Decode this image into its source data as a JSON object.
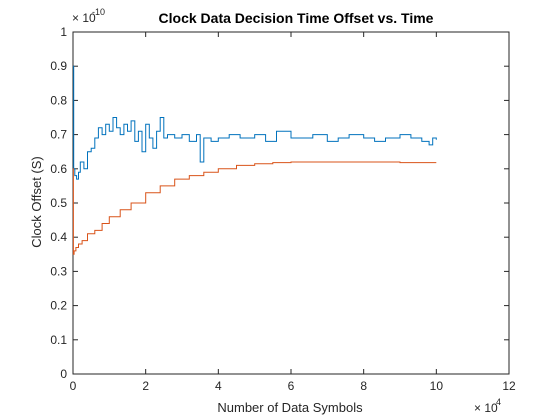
{
  "chart_data": {
    "type": "line",
    "title": "Clock Data Decision Time Offset vs. Time",
    "xlabel": "Number of Data Symbols",
    "ylabel": "Clock Offset (S)",
    "x_exponent_label": "× 10",
    "x_exponent_power": "4",
    "y_exponent_label": "× 10",
    "y_exponent_power": "-10",
    "xlim": [
      0,
      12
    ],
    "ylim": [
      0,
      1
    ],
    "x_ticks": [
      0,
      2,
      4,
      6,
      8,
      10,
      12
    ],
    "y_ticks": [
      0,
      0.1,
      0.2,
      0.3,
      0.4,
      0.5,
      0.6,
      0.7,
      0.8,
      0.9,
      1
    ],
    "x_tick_labels": [
      "0",
      "2",
      "4",
      "6",
      "8",
      "10",
      "12"
    ],
    "y_tick_labels": [
      "0",
      "0.1",
      "0.2",
      "0.3",
      "0.4",
      "0.5",
      "0.6",
      "0.7",
      "0.8",
      "0.9",
      "1"
    ],
    "grid": false,
    "series": [
      {
        "color": "#0072BD",
        "x": [
          0,
          0.02,
          0.05,
          0.1,
          0.15,
          0.2,
          0.3,
          0.4,
          0.5,
          0.6,
          0.7,
          0.8,
          0.9,
          1.0,
          1.1,
          1.2,
          1.3,
          1.4,
          1.5,
          1.6,
          1.7,
          1.8,
          1.9,
          2.0,
          2.1,
          2.2,
          2.3,
          2.4,
          2.5,
          2.6,
          2.8,
          3.0,
          3.2,
          3.4,
          3.5,
          3.6,
          3.8,
          4.0,
          4.3,
          4.6,
          5.0,
          5.3,
          5.6,
          6.0,
          6.3,
          6.6,
          7.0,
          7.3,
          7.6,
          8.0,
          8.3,
          8.6,
          9.0,
          9.3,
          9.6,
          9.8,
          9.9,
          10.0
        ],
        "y": [
          0.9,
          0.6,
          0.58,
          0.57,
          0.59,
          0.62,
          0.6,
          0.65,
          0.66,
          0.69,
          0.72,
          0.7,
          0.73,
          0.71,
          0.75,
          0.72,
          0.7,
          0.73,
          0.71,
          0.74,
          0.68,
          0.71,
          0.65,
          0.73,
          0.69,
          0.66,
          0.71,
          0.75,
          0.69,
          0.7,
          0.69,
          0.7,
          0.68,
          0.7,
          0.62,
          0.69,
          0.68,
          0.69,
          0.7,
          0.69,
          0.7,
          0.68,
          0.71,
          0.69,
          0.69,
          0.7,
          0.68,
          0.69,
          0.7,
          0.69,
          0.68,
          0.69,
          0.7,
          0.69,
          0.68,
          0.67,
          0.69,
          0.685
        ]
      },
      {
        "color": "#D95319",
        "x": [
          0,
          0.01,
          0.03,
          0.08,
          0.15,
          0.25,
          0.4,
          0.6,
          0.8,
          1.0,
          1.3,
          1.6,
          2.0,
          2.4,
          2.8,
          3.2,
          3.6,
          4.0,
          4.5,
          5.0,
          5.5,
          6.0,
          6.5,
          7.0,
          8.0,
          9.0,
          10.0
        ],
        "y": [
          0.6,
          0.35,
          0.36,
          0.37,
          0.38,
          0.39,
          0.41,
          0.42,
          0.44,
          0.46,
          0.48,
          0.5,
          0.53,
          0.55,
          0.57,
          0.58,
          0.59,
          0.6,
          0.61,
          0.615,
          0.618,
          0.62,
          0.62,
          0.62,
          0.62,
          0.618,
          0.618
        ]
      }
    ]
  }
}
